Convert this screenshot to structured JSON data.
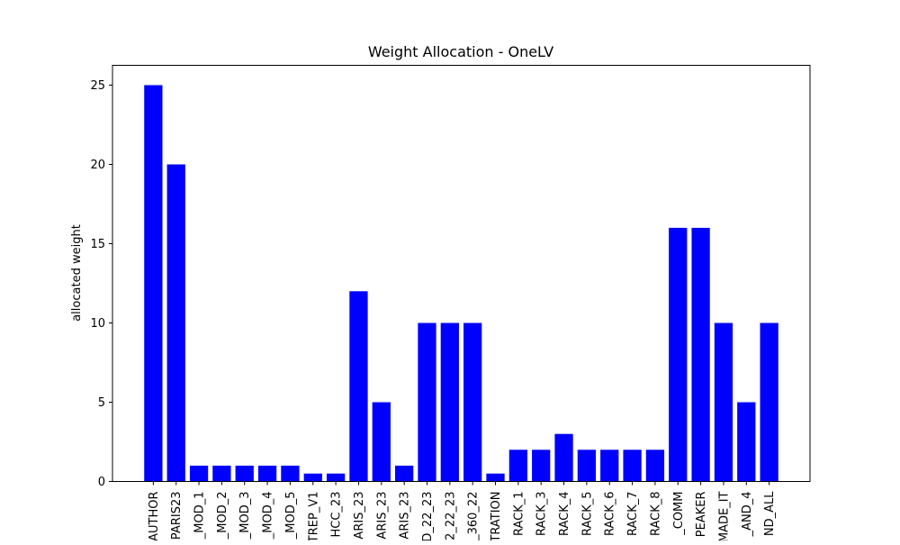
{
  "chart_data": {
    "type": "bar",
    "title": "Weight Allocation - OneLV",
    "xlabel": "",
    "ylabel": "allocated weight",
    "ylim": [
      0,
      26.25
    ],
    "yticks": [
      0,
      5,
      10,
      15,
      20,
      25
    ],
    "grid": false,
    "bar_color": "#0000ff",
    "categories": [
      "AUTHOR",
      "PARIS23",
      "_MOD_1",
      "_MOD_2",
      "_MOD_3",
      "_MOD_4",
      "_MOD_5",
      "TREP_V1",
      "HCC_23",
      "ARIS_23",
      "ARIS_23",
      "ARIS_23",
      "D_22_23",
      "2_22_23",
      "_360_22",
      "TRATION",
      "RACK_1",
      "RACK_3",
      "RACK_4",
      "RACK_5",
      "RACK_6",
      "RACK_7",
      "RACK_8",
      "_COMM",
      "PEAKER",
      "MADE_IT",
      "_AND_4",
      "ND_ALL"
    ],
    "values": [
      25,
      20,
      1,
      1,
      1,
      1,
      1,
      0.5,
      0.5,
      12,
      5,
      1,
      10,
      10,
      10,
      0.5,
      2,
      2,
      3,
      2,
      2,
      2,
      2,
      16,
      16,
      10,
      5,
      10
    ]
  }
}
